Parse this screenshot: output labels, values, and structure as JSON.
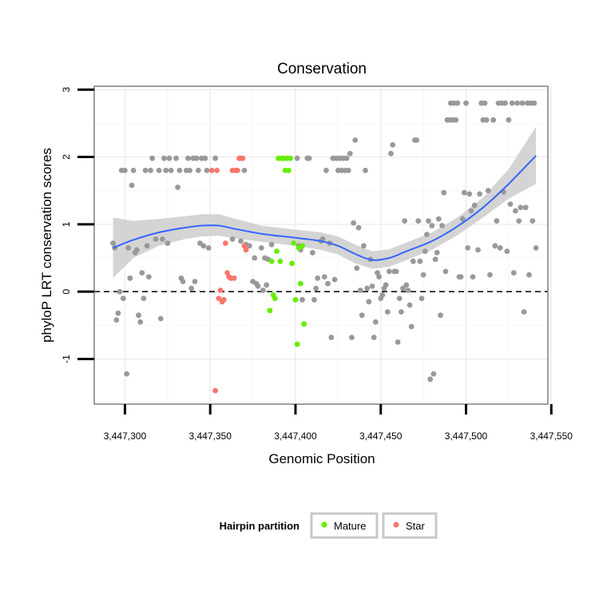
{
  "chart_data": {
    "type": "scatter",
    "title": "Conservation",
    "xlabel": "Genomic Position",
    "ylabel": "phyloP LRT conservation scores",
    "xlim": [
      3447282,
      3447548
    ],
    "ylim": [
      -1.67,
      3.05
    ],
    "x_ticks": [
      3447300,
      3447350,
      3447400,
      3447450,
      3447500,
      3447550
    ],
    "x_tick_labels": [
      "3,447,300",
      "3,447,350",
      "3,447,400",
      "3,447,450",
      "3,447,500",
      "3,447,550"
    ],
    "y_ticks": [
      -1,
      0,
      1,
      2,
      3
    ],
    "y_tick_labels": [
      "-1",
      "0",
      "1",
      "2",
      "3"
    ],
    "grid": true,
    "reference_line": {
      "y": 0,
      "style": "dashed"
    },
    "colors": {
      "other": "#999999",
      "mature": "#66ee00",
      "star": "#f8766d",
      "smooth": "#3366ff",
      "ribbon": "#cccccc"
    },
    "legend": {
      "title": "Hairpin partition",
      "position": "bottom",
      "entries": [
        {
          "label": "Mature",
          "color": "#66ee00"
        },
        {
          "label": "Star",
          "color": "#f8766d"
        }
      ]
    },
    "series": [
      {
        "name": "",
        "color": "#999999",
        "points": [
          [
            3447293,
            0.72
          ],
          [
            3447294,
            0.65
          ],
          [
            3447295,
            -0.42
          ],
          [
            3447296,
            -0.32
          ],
          [
            3447297,
            0.0
          ],
          [
            3447298,
            1.8
          ],
          [
            3447299,
            -0.1
          ],
          [
            3447300,
            1.8
          ],
          [
            3447301,
            -1.22
          ],
          [
            3447302,
            0.65
          ],
          [
            3447303,
            0.2
          ],
          [
            3447304,
            1.58
          ],
          [
            3447305,
            1.8
          ],
          [
            3447306,
            0.58
          ],
          [
            3447307,
            0.62
          ],
          [
            3447308,
            -0.35
          ],
          [
            3447309,
            -0.45
          ],
          [
            3447310,
            0.28
          ],
          [
            3447311,
            -0.1
          ],
          [
            3447312,
            1.8
          ],
          [
            3447313,
            0.68
          ],
          [
            3447314,
            0.22
          ],
          [
            3447315,
            1.8
          ],
          [
            3447316,
            1.98
          ],
          [
            3447318,
            0.78
          ],
          [
            3447320,
            1.8
          ],
          [
            3447321,
            -0.4
          ],
          [
            3447322,
            0.78
          ],
          [
            3447323,
            1.98
          ],
          [
            3447324,
            1.8
          ],
          [
            3447325,
            0.72
          ],
          [
            3447326,
            1.98
          ],
          [
            3447327,
            1.8
          ],
          [
            3447330,
            1.98
          ],
          [
            3447331,
            1.55
          ],
          [
            3447332,
            1.8
          ],
          [
            3447333,
            0.2
          ],
          [
            3447334,
            0.15
          ],
          [
            3447336,
            1.8
          ],
          [
            3447337,
            1.98
          ],
          [
            3447338,
            1.8
          ],
          [
            3447339,
            0.05
          ],
          [
            3447340,
            1.98
          ],
          [
            3447341,
            0.15
          ],
          [
            3447342,
            1.98
          ],
          [
            3447343,
            1.8
          ],
          [
            3447344,
            0.72
          ],
          [
            3447345,
            1.98
          ],
          [
            3447346,
            0.68
          ],
          [
            3447347,
            1.98
          ],
          [
            3447348,
            1.8
          ],
          [
            3447349,
            0.65
          ],
          [
            3447351,
            1.8
          ],
          [
            3447353,
            1.98
          ],
          [
            3447363,
            0.78
          ],
          [
            3447368,
            0.75
          ],
          [
            3447370,
            1.8
          ],
          [
            3447371,
            0.7
          ],
          [
            3447373,
            0.68
          ],
          [
            3447375,
            0.15
          ],
          [
            3447376,
            0.5
          ],
          [
            3447377,
            0.12
          ],
          [
            3447378,
            0.08
          ],
          [
            3447380,
            0.65
          ],
          [
            3447381,
            0.02
          ],
          [
            3447382,
            0.5
          ],
          [
            3447383,
            0.1
          ],
          [
            3447384,
            0.48
          ],
          [
            3447386,
            0.7
          ],
          [
            3447401,
            1.98
          ],
          [
            3447402,
            0.68
          ],
          [
            3447403,
            0.62
          ],
          [
            3447404,
            -0.12
          ],
          [
            3447407,
            1.98
          ],
          [
            3447408,
            1.98
          ],
          [
            3447410,
            0.58
          ],
          [
            3447411,
            -0.12
          ],
          [
            3447412,
            0.05
          ],
          [
            3447413,
            0.2
          ],
          [
            3447415,
            0.75
          ],
          [
            3447416,
            0.78
          ],
          [
            3447417,
            0.22
          ],
          [
            3447418,
            1.8
          ],
          [
            3447419,
            0.12
          ],
          [
            3447420,
            0.72
          ],
          [
            3447421,
            -0.68
          ],
          [
            3447422,
            1.98
          ],
          [
            3447423,
            0.18
          ],
          [
            3447424,
            1.98
          ],
          [
            3447425,
            1.8
          ],
          [
            3447426,
            1.98
          ],
          [
            3447427,
            1.8
          ],
          [
            3447428,
            1.98
          ],
          [
            3447429,
            1.8
          ],
          [
            3447430,
            1.98
          ],
          [
            3447431,
            1.8
          ],
          [
            3447432,
            2.05
          ],
          [
            3447433,
            -0.68
          ],
          [
            3447434,
            1.02
          ],
          [
            3447435,
            2.25
          ],
          [
            3447436,
            0.35
          ],
          [
            3447437,
            0.95
          ],
          [
            3447438,
            0.02
          ],
          [
            3447439,
            -0.35
          ],
          [
            3447440,
            0.68
          ],
          [
            3447441,
            1.8
          ],
          [
            3447442,
            0.05
          ],
          [
            3447443,
            -0.15
          ],
          [
            3447444,
            0.48
          ],
          [
            3447445,
            0.08
          ],
          [
            3447446,
            -0.68
          ],
          [
            3447447,
            -0.45
          ],
          [
            3447448,
            0.28
          ],
          [
            3447449,
            0.22
          ],
          [
            3447450,
            -0.1
          ],
          [
            3447451,
            -0.05
          ],
          [
            3447452,
            0.05
          ],
          [
            3447453,
            0.1
          ],
          [
            3447454,
            -0.3
          ],
          [
            3447455,
            0.3
          ],
          [
            3447456,
            2.05
          ],
          [
            3447457,
            2.18
          ],
          [
            3447458,
            0.3
          ],
          [
            3447459,
            0.3
          ],
          [
            3447460,
            -0.75
          ],
          [
            3447461,
            -0.1
          ],
          [
            3447462,
            -0.3
          ],
          [
            3447463,
            0.05
          ],
          [
            3447464,
            1.05
          ],
          [
            3447465,
            0.1
          ],
          [
            3447466,
            0.02
          ],
          [
            3447467,
            -0.2
          ],
          [
            3447468,
            -0.52
          ],
          [
            3447469,
            0.45
          ],
          [
            3447470,
            2.25
          ],
          [
            3447471,
            2.25
          ],
          [
            3447472,
            1.05
          ],
          [
            3447473,
            0.45
          ],
          [
            3447474,
            -0.1
          ],
          [
            3447475,
            0.25
          ],
          [
            3447476,
            0.6
          ],
          [
            3447477,
            0.85
          ],
          [
            3447478,
            1.05
          ],
          [
            3447479,
            -1.3
          ],
          [
            3447480,
            0.98
          ],
          [
            3447481,
            -1.22
          ],
          [
            3447482,
            0.48
          ],
          [
            3447483,
            0.58
          ],
          [
            3447484,
            1.08
          ],
          [
            3447485,
            -0.35
          ],
          [
            3447486,
            0.98
          ],
          [
            3447487,
            1.47
          ],
          [
            3447488,
            0.3
          ],
          [
            3447489,
            2.55
          ],
          [
            3447490,
            2.55
          ],
          [
            3447491,
            2.8
          ],
          [
            3447492,
            2.55
          ],
          [
            3447493,
            2.8
          ],
          [
            3447494,
            2.55
          ],
          [
            3447495,
            2.8
          ],
          [
            3447496,
            0.22
          ],
          [
            3447497,
            0.22
          ],
          [
            3447498,
            1.08
          ],
          [
            3447499,
            1.47
          ],
          [
            3447500,
            2.8
          ],
          [
            3447501,
            0.65
          ],
          [
            3447502,
            1.45
          ],
          [
            3447503,
            1.2
          ],
          [
            3447504,
            0.22
          ],
          [
            3447505,
            1.28
          ],
          [
            3447507,
            0.62
          ],
          [
            3447508,
            1.45
          ],
          [
            3447509,
            2.8
          ],
          [
            3447510,
            2.55
          ],
          [
            3447511,
            2.8
          ],
          [
            3447512,
            2.55
          ],
          [
            3447513,
            1.5
          ],
          [
            3447514,
            0.25
          ],
          [
            3447516,
            2.55
          ],
          [
            3447517,
            0.68
          ],
          [
            3447518,
            1.05
          ],
          [
            3447519,
            2.8
          ],
          [
            3447520,
            0.65
          ],
          [
            3447521,
            2.8
          ],
          [
            3447522,
            1.48
          ],
          [
            3447523,
            2.8
          ],
          [
            3447524,
            0.6
          ],
          [
            3447525,
            2.55
          ],
          [
            3447526,
            1.3
          ],
          [
            3447527,
            2.8
          ],
          [
            3447528,
            0.28
          ],
          [
            3447529,
            1.2
          ],
          [
            3447530,
            2.8
          ],
          [
            3447531,
            1.05
          ],
          [
            3447532,
            1.25
          ],
          [
            3447533,
            2.8
          ],
          [
            3447534,
            -0.3
          ],
          [
            3447535,
            1.25
          ],
          [
            3447536,
            2.8
          ],
          [
            3447537,
            0.25
          ],
          [
            3447538,
            2.8
          ],
          [
            3447539,
            1.05
          ],
          [
            3447540,
            2.8
          ],
          [
            3447541,
            0.65
          ]
        ]
      },
      {
        "name": "Mature",
        "color": "#66ee00",
        "points": [
          [
            3447385,
            -0.28
          ],
          [
            3447386,
            0.45
          ],
          [
            3447387,
            -0.05
          ],
          [
            3447388,
            -0.1
          ],
          [
            3447389,
            0.6
          ],
          [
            3447390,
            1.98
          ],
          [
            3447391,
            0.45
          ],
          [
            3447392,
            1.98
          ],
          [
            3447393,
            1.98
          ],
          [
            3447394,
            1.8
          ],
          [
            3447395,
            1.98
          ],
          [
            3447396,
            1.8
          ],
          [
            3447397,
            1.98
          ],
          [
            3447398,
            0.42
          ],
          [
            3447399,
            0.72
          ],
          [
            3447400,
            -0.12
          ],
          [
            3447401,
            -0.78
          ],
          [
            3447402,
            0.65
          ],
          [
            3447403,
            0.12
          ],
          [
            3447404,
            0.68
          ],
          [
            3447405,
            -0.48
          ]
        ]
      },
      {
        "name": "Star",
        "color": "#f8766d",
        "points": [
          [
            3447351,
            1.8
          ],
          [
            3447353,
            -1.47
          ],
          [
            3447354,
            1.8
          ],
          [
            3447355,
            -0.1
          ],
          [
            3447356,
            0.02
          ],
          [
            3447357,
            -0.15
          ],
          [
            3447358,
            -0.12
          ],
          [
            3447359,
            0.72
          ],
          [
            3447360,
            0.28
          ],
          [
            3447361,
            0.22
          ],
          [
            3447362,
            0.2
          ],
          [
            3447363,
            1.8
          ],
          [
            3447364,
            0.2
          ],
          [
            3447365,
            1.8
          ],
          [
            3447366,
            1.8
          ],
          [
            3447367,
            1.98
          ],
          [
            3447368,
            1.98
          ],
          [
            3447369,
            1.98
          ],
          [
            3447370,
            0.68
          ],
          [
            3447371,
            0.62
          ]
        ]
      }
    ],
    "smooth_curve": [
      [
        3447293,
        0.65
      ],
      [
        3447305,
        0.77
      ],
      [
        3447320,
        0.88
      ],
      [
        3447335,
        0.95
      ],
      [
        3447345,
        0.98
      ],
      [
        3447355,
        0.98
      ],
      [
        3447365,
        0.93
      ],
      [
        3447380,
        0.86
      ],
      [
        3447400,
        0.8
      ],
      [
        3447415,
        0.75
      ],
      [
        3447425,
        0.68
      ],
      [
        3447435,
        0.56
      ],
      [
        3447445,
        0.47
      ],
      [
        3447455,
        0.5
      ],
      [
        3447465,
        0.6
      ],
      [
        3447480,
        0.75
      ],
      [
        3447495,
        0.97
      ],
      [
        3447510,
        1.25
      ],
      [
        3447525,
        1.6
      ],
      [
        3447541,
        2.02
      ]
    ],
    "confidence_band": [
      [
        3447293,
        0.2,
        1.1
      ],
      [
        3447305,
        0.5,
        1.05
      ],
      [
        3447320,
        0.68,
        1.08
      ],
      [
        3447335,
        0.78,
        1.12
      ],
      [
        3447345,
        0.82,
        1.15
      ],
      [
        3447355,
        0.83,
        1.15
      ],
      [
        3447365,
        0.79,
        1.08
      ],
      [
        3447380,
        0.74,
        0.98
      ],
      [
        3447400,
        0.68,
        0.92
      ],
      [
        3447415,
        0.62,
        0.88
      ],
      [
        3447425,
        0.55,
        0.82
      ],
      [
        3447435,
        0.42,
        0.7
      ],
      [
        3447445,
        0.34,
        0.6
      ],
      [
        3447455,
        0.37,
        0.63
      ],
      [
        3447465,
        0.47,
        0.73
      ],
      [
        3447480,
        0.62,
        0.88
      ],
      [
        3447495,
        0.84,
        1.1
      ],
      [
        3447510,
        1.1,
        1.4
      ],
      [
        3447525,
        1.38,
        1.82
      ],
      [
        3447541,
        1.6,
        2.45
      ]
    ]
  }
}
